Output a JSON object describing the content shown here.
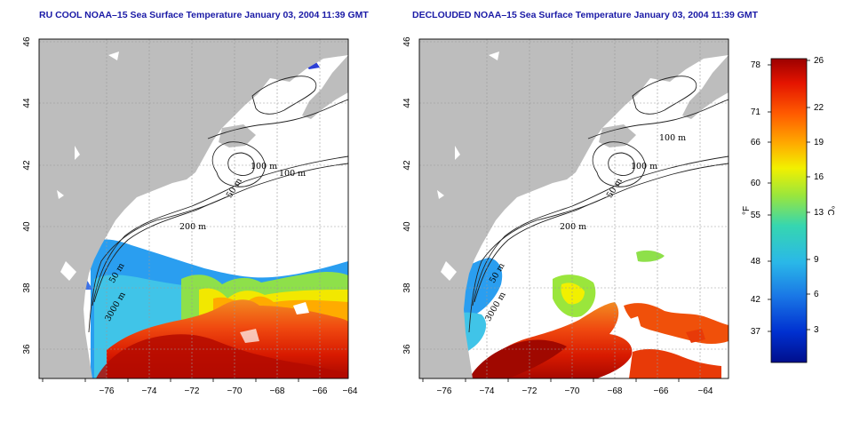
{
  "left_panel": {
    "title": "RU COOL NOAA–15 Sea Surface Temperature January 03, 2004 11:39 GMT",
    "contour_labels": [
      "100 m",
      "100 m",
      "50 m",
      "200 m",
      "50 m",
      "3000 m"
    ]
  },
  "right_panel": {
    "title": "DECLOUDED NOAA–15 Sea Surface Temperature January 03, 2004 11:39 GMT",
    "contour_labels": [
      "100 m",
      "100 m",
      "50 m",
      "200 m",
      "50 m",
      "3000 m"
    ]
  },
  "axes": {
    "lon_ticks": [
      "−76",
      "−74",
      "−72",
      "−70",
      "−68",
      "−66",
      "−64"
    ],
    "lat_ticks": [
      "46",
      "44",
      "42",
      "40",
      "38",
      "36"
    ]
  },
  "colorbar": {
    "f_label": "°F",
    "c_label": "°C",
    "f_ticks": [
      "78",
      "71",
      "66",
      "60",
      "55",
      "48",
      "42",
      "37"
    ],
    "c_ticks": [
      "26",
      "22",
      "19",
      "16",
      "13",
      "9",
      "6",
      "3"
    ],
    "colors": [
      "#000f8c",
      "#0030d0",
      "#1a78e6",
      "#2ab8e8",
      "#36d6b0",
      "#9ae63c",
      "#f2f000",
      "#ffab00",
      "#ff5a00",
      "#e41400",
      "#9c0000"
    ]
  },
  "colors": {
    "land": "#bdbdbd",
    "ocean": "#ffffff",
    "grid": "#9a9a9a",
    "title": "#1a1aa6"
  }
}
